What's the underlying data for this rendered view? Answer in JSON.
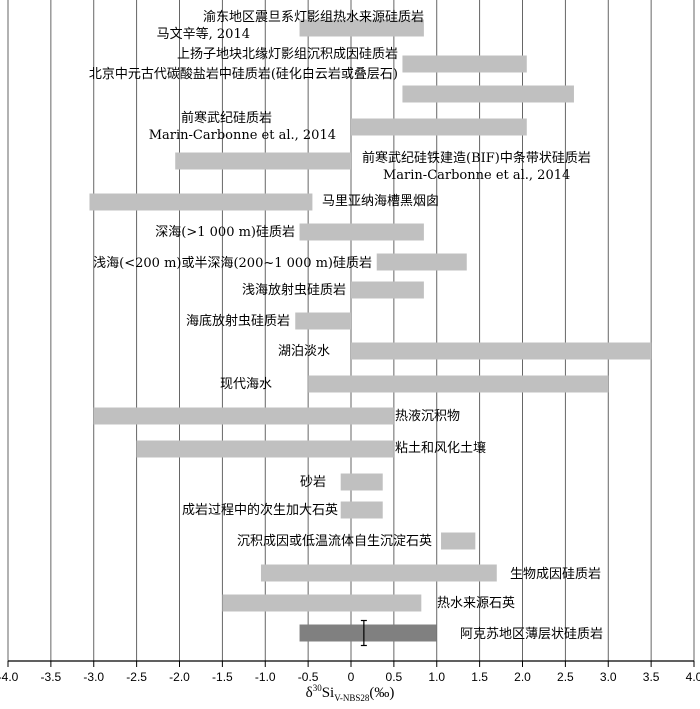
{
  "chart_data": {
    "type": "bar",
    "orientation": "horizontal-range",
    "xlim": [
      -4.0,
      4.0
    ],
    "xticks": [
      -4.0,
      -3.5,
      -3.0,
      -2.5,
      -2.0,
      -1.5,
      -1.0,
      -0.5,
      0,
      0.5,
      1.0,
      1.5,
      2.0,
      2.5,
      3.0,
      3.5,
      4.0
    ],
    "xtick_labels": [
      "-4.0",
      "-3.5",
      "-3.0",
      "-2.5",
      "-2.0",
      "-1.5",
      "-1.0",
      "-0.5",
      "0",
      "0.5",
      "1.0",
      "1.5",
      "2.0",
      "2.5",
      "3.0",
      "3.5",
      "4.0"
    ],
    "xlabel": {
      "prefix": "δ",
      "sup": "30",
      "main": "Si",
      "sub": "V-NBS28",
      "suffix": "(‰)"
    },
    "grid": "vertical",
    "bars": [
      {
        "min": -0.6,
        "max": 0.85,
        "color": "#c0c0c0"
      },
      {
        "min": 0.6,
        "max": 2.05,
        "color": "#c0c0c0"
      },
      {
        "min": 0.6,
        "max": 2.6,
        "color": "#c0c0c0"
      },
      {
        "min": 0.0,
        "max": 2.05,
        "color": "#c0c0c0"
      },
      {
        "min": -2.05,
        "max": 0.0,
        "color": "#c0c0c0"
      },
      {
        "min": -3.05,
        "max": -0.45,
        "color": "#c0c0c0"
      },
      {
        "min": -0.6,
        "max": 0.85,
        "color": "#c0c0c0"
      },
      {
        "min": 0.3,
        "max": 1.35,
        "color": "#c0c0c0"
      },
      {
        "min": 0.0,
        "max": 0.85,
        "color": "#c0c0c0"
      },
      {
        "min": -0.65,
        "max": 0.0,
        "color": "#c0c0c0"
      },
      {
        "min": 0.0,
        "max": 3.5,
        "color": "#c0c0c0"
      },
      {
        "min": -0.5,
        "max": 3.0,
        "color": "#c0c0c0"
      },
      {
        "min": -3.0,
        "max": 0.5,
        "color": "#c0c0c0"
      },
      {
        "min": -2.5,
        "max": 0.5,
        "color": "#c0c0c0"
      },
      {
        "min": -0.12,
        "max": 0.37,
        "color": "#c0c0c0"
      },
      {
        "min": -0.12,
        "max": 0.37,
        "color": "#c0c0c0"
      },
      {
        "min": 1.05,
        "max": 1.45,
        "color": "#c0c0c0"
      },
      {
        "min": -1.05,
        "max": 1.7,
        "color": "#c0c0c0"
      },
      {
        "min": -1.5,
        "max": 0.82,
        "color": "#c0c0c0"
      },
      {
        "min": -0.6,
        "max": 1.0,
        "color": "#808080",
        "error_bar": {
          "center": 0.15,
          "min": 0.15,
          "max": 0.15
        }
      }
    ],
    "labels": [
      {
        "text": "渝东地区震旦系灯影组热水来源硅质岩"
      },
      {
        "text": "马文辛等, 2014"
      },
      {
        "text": "上扬子地块北缘灯影组沉积成因硅质岩"
      },
      {
        "text": "北京中元古代碳酸盐岩中硅质岩(硅化白云岩或叠层石)"
      },
      {
        "text": "前寒武纪硅质岩"
      },
      {
        "text": "Marin-Carbonne et al., 2014"
      },
      {
        "text": "前寒武纪硅铁建造(BIF)中条带状硅质岩"
      },
      {
        "text": "Marin-Carbonne et al., 2014"
      },
      {
        "text": "马里亚纳海槽黑烟囱"
      },
      {
        "text": "深海(>1 000 m)硅质岩"
      },
      {
        "text": "浅海(<200 m)或半深海(200~1 000 m)硅质岩"
      },
      {
        "text": "浅海放射虫硅质岩"
      },
      {
        "text": "海底放射虫硅质岩"
      },
      {
        "text": "湖泊淡水"
      },
      {
        "text": "现代海水"
      },
      {
        "text": "热液沉积物"
      },
      {
        "text": "粘土和风化土壤"
      },
      {
        "text": "砂岩"
      },
      {
        "text": "成岩过程中的次生加大石英"
      },
      {
        "text": "沉积成因或低温流体自生沉淀石英"
      },
      {
        "text": "生物成因硅质岩"
      },
      {
        "text": "热水来源石英"
      },
      {
        "text": "阿克苏地区薄层状硅质岩"
      }
    ]
  }
}
